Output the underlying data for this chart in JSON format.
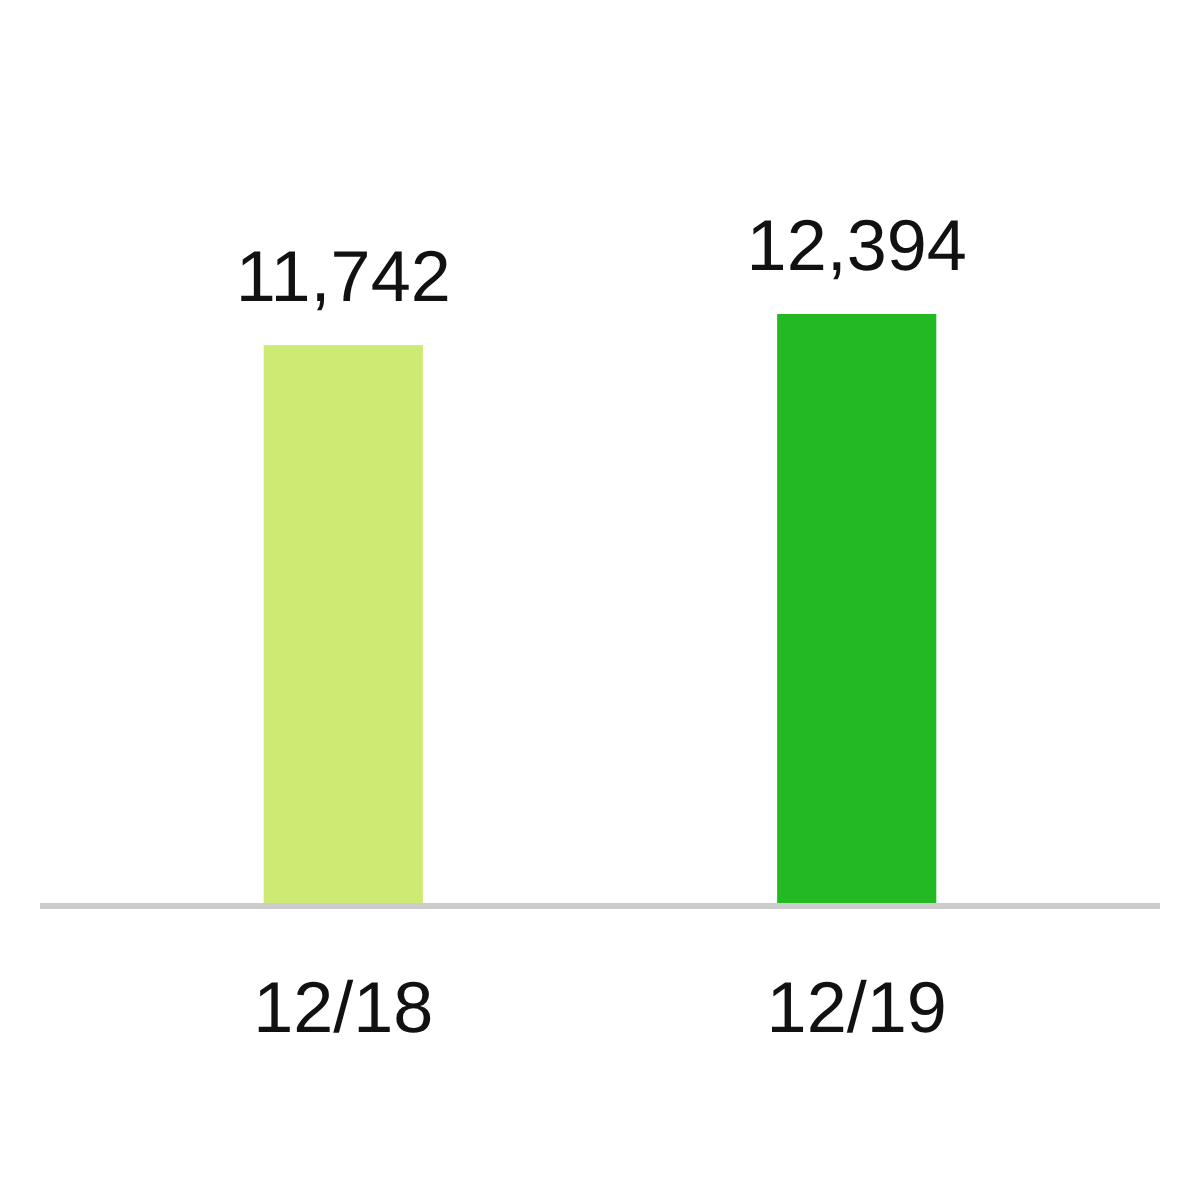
{
  "chart_data": {
    "type": "bar",
    "categories": [
      "12/18",
      "12/19"
    ],
    "values": [
      11742,
      12394
    ],
    "colors": [
      "#cdeb72",
      "#22b922"
    ],
    "value_labels": [
      "11,742",
      "12,394"
    ]
  }
}
